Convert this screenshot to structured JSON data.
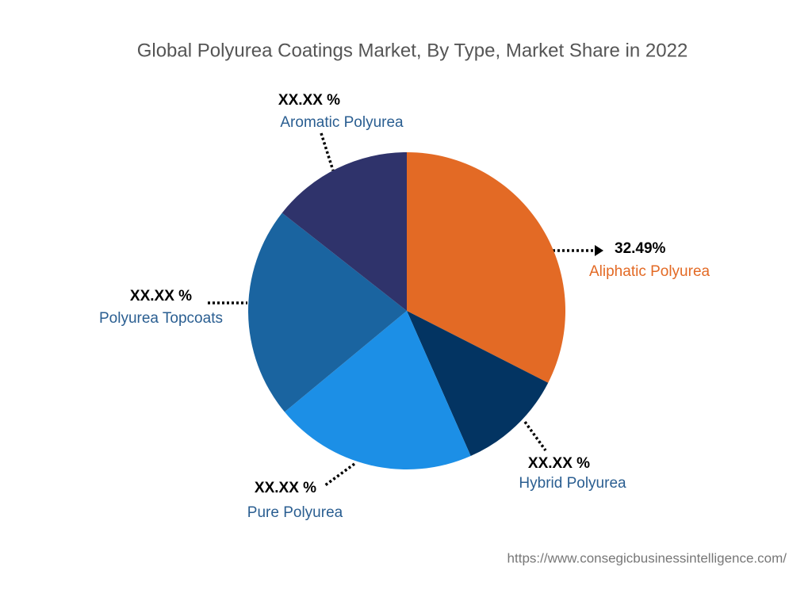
{
  "chart_data": {
    "type": "pie",
    "title": "Global Polyurea Coatings Market, By Type, Market Share in 2022",
    "categories": [
      "Aliphatic Polyurea",
      "Hybrid Polyurea",
      "Pure Polyurea",
      "Polyurea Topcoats",
      "Aromatic Polyurea"
    ],
    "values": [
      32.49,
      10.9,
      20.6,
      21.6,
      14.4
    ],
    "value_labels": [
      "32.49%",
      "XX.XX %",
      "XX.XX %",
      "XX.XX %",
      "XX.XX %"
    ],
    "colors": [
      "#e36a25",
      "#033462",
      "#1c8fe6",
      "#1a64a0",
      "#2f336b"
    ],
    "source": "https://www.consegicbusinessintelligence.com/"
  }
}
